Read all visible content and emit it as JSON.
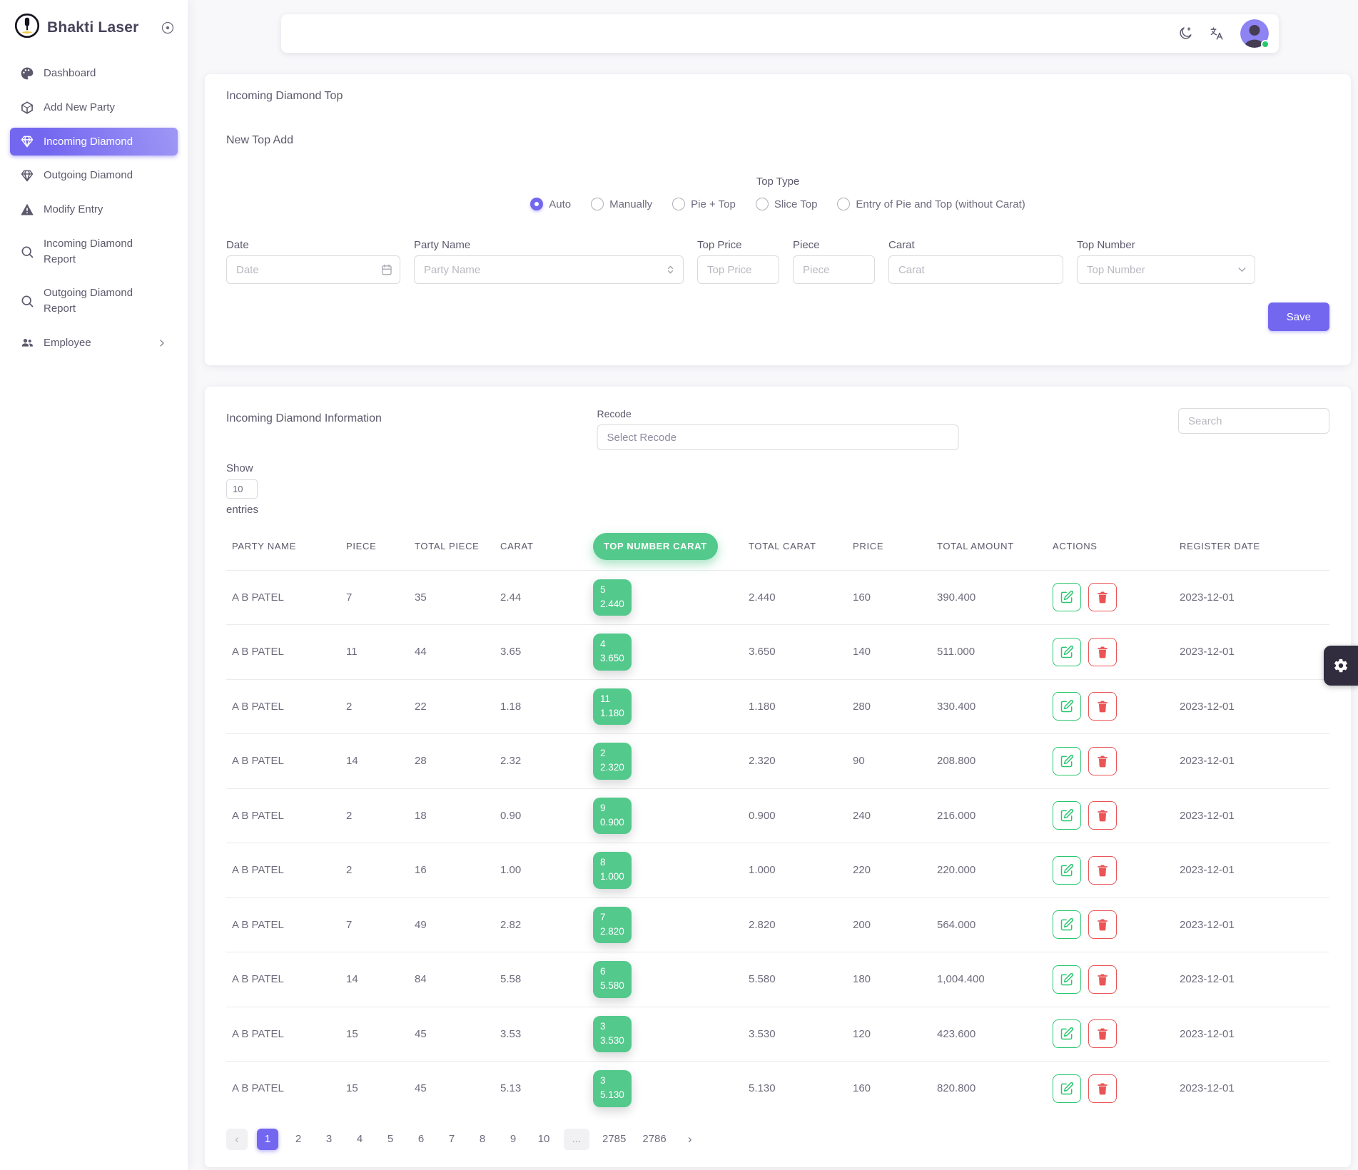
{
  "app": {
    "name": "Bhakti Laser"
  },
  "sidebar": {
    "items": [
      {
        "label": "Dashboard",
        "icon": "dashboard-icon",
        "active": false,
        "chevron": false
      },
      {
        "label": "Add New Party",
        "icon": "box-icon",
        "active": false,
        "chevron": false
      },
      {
        "label": "Incoming Diamond",
        "icon": "diamond-icon",
        "active": true,
        "chevron": false
      },
      {
        "label": "Outgoing Diamond",
        "icon": "diamond-icon",
        "active": false,
        "chevron": false
      },
      {
        "label": "Modify Entry",
        "icon": "warning-icon",
        "active": false,
        "chevron": false
      },
      {
        "label": "Incoming Diamond Report",
        "icon": "search-icon",
        "active": false,
        "chevron": false
      },
      {
        "label": "Outgoing Diamond Report",
        "icon": "search-icon",
        "active": false,
        "chevron": false
      },
      {
        "label": "Employee",
        "icon": "users-icon",
        "active": false,
        "chevron": true
      }
    ]
  },
  "top_card": {
    "title": "Incoming Diamond Top",
    "subtitle": "New Top Add",
    "top_type": {
      "label": "Top Type",
      "options": [
        {
          "label": "Auto",
          "checked": true
        },
        {
          "label": "Manually",
          "checked": false
        },
        {
          "label": "Pie + Top",
          "checked": false
        },
        {
          "label": "Slice Top",
          "checked": false
        },
        {
          "label": "Entry of Pie and Top (without Carat)",
          "checked": false
        }
      ]
    },
    "fields": {
      "date": {
        "label": "Date",
        "placeholder": "Date"
      },
      "party_name": {
        "label": "Party Name",
        "placeholder": "Party Name"
      },
      "top_price": {
        "label": "Top Price",
        "placeholder": "Top Price"
      },
      "piece": {
        "label": "Piece",
        "placeholder": "Piece"
      },
      "carat": {
        "label": "Carat",
        "placeholder": "Carat"
      },
      "top_number": {
        "label": "Top Number",
        "placeholder": "Top Number"
      }
    },
    "save_label": "Save"
  },
  "info_card": {
    "title": "Incoming Diamond Information",
    "recode": {
      "label": "Recode",
      "placeholder": "Select Recode"
    },
    "search_placeholder": "Search",
    "show": {
      "label": "Show",
      "value": "10",
      "suffix": "entries"
    },
    "table": {
      "headers": [
        "PARTY NAME",
        "PIECE",
        "TOTAL PIECE",
        "CARAT",
        "TOP NUMBER CARAT",
        "TOTAL CARAT",
        "PRICE",
        "TOTAL AMOUNT",
        "ACTIONS",
        "REGISTER DATE"
      ],
      "rows": [
        {
          "party": "A B PATEL",
          "piece": "7",
          "total_piece": "35",
          "carat": "2.44",
          "top_number": "5",
          "top_number_carat": "2.440",
          "total_carat": "2.440",
          "price": "160",
          "total_amount": "390.400",
          "register_date": "2023-12-01"
        },
        {
          "party": "A B PATEL",
          "piece": "11",
          "total_piece": "44",
          "carat": "3.65",
          "top_number": "4",
          "top_number_carat": "3.650",
          "total_carat": "3.650",
          "price": "140",
          "total_amount": "511.000",
          "register_date": "2023-12-01"
        },
        {
          "party": "A B PATEL",
          "piece": "2",
          "total_piece": "22",
          "carat": "1.18",
          "top_number": "11",
          "top_number_carat": "1.180",
          "total_carat": "1.180",
          "price": "280",
          "total_amount": "330.400",
          "register_date": "2023-12-01"
        },
        {
          "party": "A B PATEL",
          "piece": "14",
          "total_piece": "28",
          "carat": "2.32",
          "top_number": "2",
          "top_number_carat": "2.320",
          "total_carat": "2.320",
          "price": "90",
          "total_amount": "208.800",
          "register_date": "2023-12-01"
        },
        {
          "party": "A B PATEL",
          "piece": "2",
          "total_piece": "18",
          "carat": "0.90",
          "top_number": "9",
          "top_number_carat": "0.900",
          "total_carat": "0.900",
          "price": "240",
          "total_amount": "216.000",
          "register_date": "2023-12-01"
        },
        {
          "party": "A B PATEL",
          "piece": "2",
          "total_piece": "16",
          "carat": "1.00",
          "top_number": "8",
          "top_number_carat": "1.000",
          "total_carat": "1.000",
          "price": "220",
          "total_amount": "220.000",
          "register_date": "2023-12-01"
        },
        {
          "party": "A B PATEL",
          "piece": "7",
          "total_piece": "49",
          "carat": "2.82",
          "top_number": "7",
          "top_number_carat": "2.820",
          "total_carat": "2.820",
          "price": "200",
          "total_amount": "564.000",
          "register_date": "2023-12-01"
        },
        {
          "party": "A B PATEL",
          "piece": "14",
          "total_piece": "84",
          "carat": "5.58",
          "top_number": "6",
          "top_number_carat": "5.580",
          "total_carat": "5.580",
          "price": "180",
          "total_amount": "1,004.400",
          "register_date": "2023-12-01"
        },
        {
          "party": "A B PATEL",
          "piece": "15",
          "total_piece": "45",
          "carat": "3.53",
          "top_number": "3",
          "top_number_carat": "3.530",
          "total_carat": "3.530",
          "price": "120",
          "total_amount": "423.600",
          "register_date": "2023-12-01"
        },
        {
          "party": "A B PATEL",
          "piece": "15",
          "total_piece": "45",
          "carat": "5.13",
          "top_number": "3",
          "top_number_carat": "5.130",
          "total_carat": "5.130",
          "price": "160",
          "total_amount": "820.800",
          "register_date": "2023-12-01"
        }
      ]
    },
    "pagination": {
      "prev": "‹",
      "next": "›",
      "active": "1",
      "pages": [
        "1",
        "2",
        "3",
        "4",
        "5",
        "6",
        "7",
        "8",
        "9",
        "10",
        "...",
        "2785",
        "2786"
      ]
    }
  },
  "colors": {
    "accent": "#7367f0",
    "success": "#54c98c",
    "edit_green": "#28c76f",
    "delete_red": "#ea5455"
  }
}
